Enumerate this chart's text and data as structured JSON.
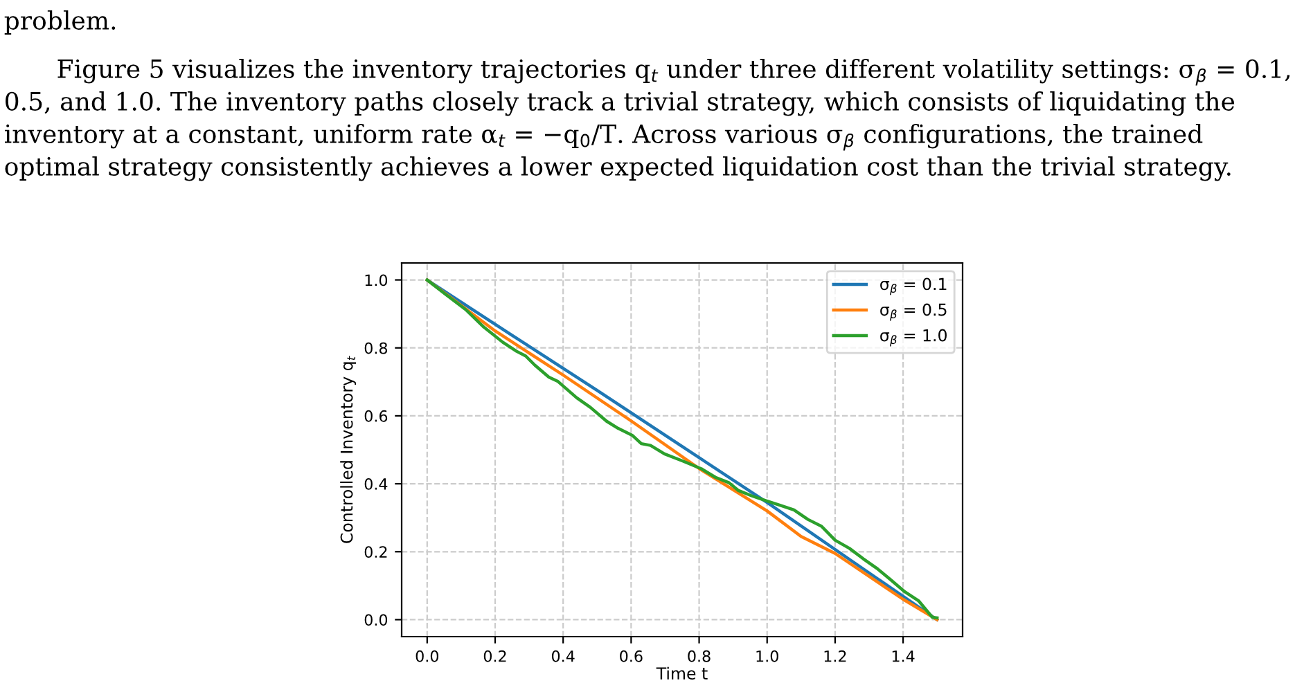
{
  "chart_data": {
    "type": "line",
    "xlabel": "Time t",
    "ylabel": "Controlled Inventory q$_{t}$",
    "annotations": [
      "problem.",
      "Figure 5 visualizes the inventory trajectories q$_{t}$ under three different volatility settings: σ$_{β}$ = 0.1,",
      "0.5, and 1.0. The inventory paths closely track a trivial strategy, which consists of liquidating the",
      "inventory at a constant, uniform rate α$_{t}$ = −q$_{0}$/T. Across various σ$_{β}$ configurations, the trained",
      "optimal strategy consistently achieves a lower expected liquidation cost than the trivial strategy."
    ],
    "xlim": [
      -0.075,
      1.575
    ],
    "xticks": [
      {
        "value": 0,
        "label": "0.0"
      },
      0.2,
      0.4,
      0.6,
      0.8,
      {
        "value": 1,
        "label": "1.0"
      },
      1.2,
      1.4
    ],
    "ylim": [
      -0.05,
      1.05
    ],
    "yticks": [
      {
        "value": 0,
        "label": "0.0"
      },
      0.2,
      0.4,
      0.6,
      0.8,
      {
        "value": 1,
        "label": "1.0"
      }
    ],
    "grid": true,
    "legend": "top right",
    "line_style": "solid",
    "marker": "none",
    "series": [
      {
        "name": "σ$_{β}$ = 0.1",
        "color": "#1f77b4",
        "x": [
          0,
          0.25,
          0.5,
          0.75,
          1.0,
          1.25,
          1.5
        ],
        "values": [
          1.0,
          0.837,
          0.675,
          0.51,
          0.345,
          0.172,
          0.0
        ]
      },
      {
        "name": "σ$_{β}$ = 0.5",
        "color": "#ff7f0e",
        "x": [
          0,
          0.2,
          0.4,
          0.6,
          0.8,
          1.0,
          1.1,
          1.2,
          1.4,
          1.5
        ],
        "values": [
          1.0,
          0.85,
          0.72,
          0.585,
          0.445,
          0.32,
          0.245,
          0.195,
          0.06,
          0.0
        ]
      },
      {
        "name": "σ$_{β}$ = 1.0",
        "color": "#2ca02c",
        "x": [
          0,
          0.058,
          0.113,
          0.167,
          0.222,
          0.263,
          0.29,
          0.317,
          0.358,
          0.385,
          0.44,
          0.48,
          0.528,
          0.562,
          0.603,
          0.63,
          0.657,
          0.698,
          0.752,
          0.807,
          0.848,
          0.888,
          0.916,
          0.956,
          0.997,
          1.038,
          1.079,
          1.12,
          1.16,
          1.2,
          1.242,
          1.283,
          1.323,
          1.364,
          1.405,
          1.446,
          1.486,
          1.5
        ],
        "values": [
          1.0,
          0.955,
          0.913,
          0.861,
          0.817,
          0.79,
          0.776,
          0.749,
          0.714,
          0.701,
          0.653,
          0.625,
          0.584,
          0.563,
          0.543,
          0.518,
          0.513,
          0.488,
          0.467,
          0.444,
          0.419,
          0.403,
          0.38,
          0.364,
          0.35,
          0.337,
          0.323,
          0.295,
          0.275,
          0.234,
          0.21,
          0.179,
          0.151,
          0.117,
          0.082,
          0.055,
          0.007,
          0.005
        ]
      }
    ]
  }
}
